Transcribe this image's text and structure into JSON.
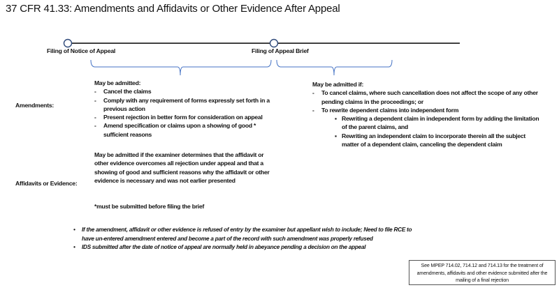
{
  "title": "37 CFR 41.33: Amendments and Affidavits or Other Evidence After Appeal",
  "timeline": {
    "milestones": [
      "Filing of Notice of Appeal",
      "Filing of Appeal Brief"
    ],
    "line_color": "#000000",
    "brace_color": "#4472C4"
  },
  "rows": {
    "amendments_label": "Amendments:",
    "affidavits_label": "Affidavits or Evidence:"
  },
  "amendments_before_brief": {
    "heading": "May be admitted:",
    "items": [
      "Cancel the claims",
      "Comply with any requirement of forms expressly set forth in a previous action",
      "Present rejection in better form for consideration on appeal",
      "Amend specification or claims upon a showing of good * sufficient reasons"
    ]
  },
  "amendments_after_brief": {
    "heading": "May be admitted  if:",
    "items": [
      "To cancel claims, where such cancellation does not affect the scope of any other pending claims in the proceedings; or",
      "To rewrite dependent claims into independent form"
    ],
    "subitems": [
      "Rewriting a dependent claim in independent form by adding the limitation of the parent claims, and",
      "Rewriting an independent claim to incorporate therein all the subject matter of a dependent claim, canceling the dependent claim"
    ]
  },
  "affidavits": {
    "text": "May be admitted  if the examiner determines that the affidavit or other evidence overcomes all rejection under appeal and that a showing of good and sufficient reasons why the affidavit or other evidence is necessary and was not earlier presented",
    "footnote": "*must be submitted before filing the brief"
  },
  "notes": [
    "If the amendment, affidavit or other evidence is refused of entry by the examiner but appellant wish to include; Need to file RCE to have un-entered amendment entered and become a part of the record with such amendment was properly refused",
    "IDS submitted after the date of notice of appeal are normally held in abeyance pending a decision on the appeal"
  ],
  "reference_box": "See MPEP 714.02, 714.12 and 714.13 for the treatment of amendments, affidavits and other evidence submitted after the mailing of  a final rejection"
}
